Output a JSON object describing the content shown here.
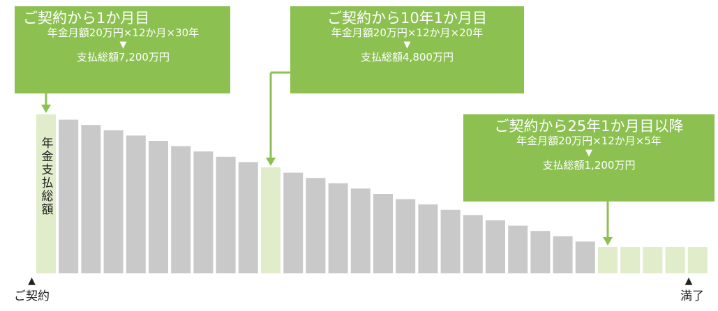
{
  "callouts": [
    {
      "title": "ご契約から1か月目",
      "formula": "年金月額20万円×12か月×30年",
      "arrow": "▼",
      "total": "支払総額7,200万円"
    },
    {
      "title": "ご契約から10年1か月目",
      "formula": "年金月額20万円×12か月×20年",
      "arrow": "▼",
      "total": "支払総額4,800万円"
    },
    {
      "title": "ご契約から25年1か月目以降",
      "formula": "年金月額20万円×12か月×5年",
      "arrow": "▼",
      "total": "支払総額1,200万円"
    }
  ],
  "y_label": "年金支払総額",
  "start_label": "ご契約",
  "end_label": "満了",
  "start_marker": "▲",
  "end_marker": "▲",
  "chart_data": {
    "type": "bar",
    "ylabel": "年金支払総額",
    "ylim": [
      0,
      7200
    ],
    "values": [
      7200,
      6960,
      6720,
      6480,
      6240,
      6000,
      5760,
      5520,
      5280,
      5040,
      4800,
      4560,
      4320,
      4080,
      3840,
      3600,
      3360,
      3120,
      2880,
      2640,
      2400,
      2160,
      1920,
      1680,
      1440,
      1200,
      1200,
      1200,
      1200,
      1200
    ],
    "highlighted_indices": [
      0,
      10,
      25,
      26,
      27,
      28,
      29
    ],
    "grid": false,
    "legend": "none"
  },
  "colors": {
    "bar_gray": "#c9c9c9",
    "bar_highlight": "#e0ecca",
    "accent": "#8cc152"
  }
}
